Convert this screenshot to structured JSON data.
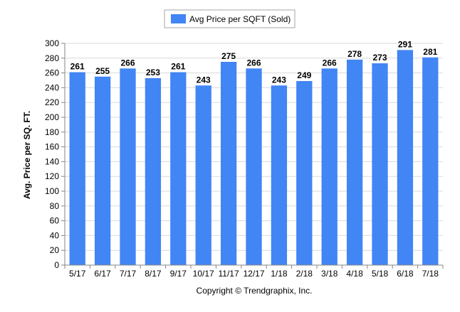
{
  "chart_data": {
    "type": "bar",
    "categories": [
      "5/17",
      "6/17",
      "7/17",
      "8/17",
      "9/17",
      "10/17",
      "11/17",
      "12/17",
      "1/18",
      "2/18",
      "3/18",
      "4/18",
      "5/18",
      "6/18",
      "7/18"
    ],
    "series": [
      {
        "name": "Avg Price per SQFT (Sold)",
        "values": [
          261,
          255,
          266,
          253,
          261,
          243,
          275,
          266,
          243,
          249,
          266,
          278,
          273,
          291,
          281
        ]
      }
    ],
    "ylabel": "Avg. Price per SQ. FT.",
    "xlabel": "",
    "ylim": [
      0,
      300
    ],
    "yticks": [
      0,
      20,
      40,
      60,
      80,
      100,
      120,
      140,
      160,
      180,
      200,
      220,
      240,
      260,
      280,
      300
    ],
    "grid": true,
    "legend_position": "top-center",
    "data_labels": true,
    "colors": {
      "bar": "#4285f4",
      "grid": "#d9d9d9",
      "axis": "#868686"
    }
  },
  "footer": {
    "copyright": "Copyright © Trendgraphix, Inc."
  }
}
